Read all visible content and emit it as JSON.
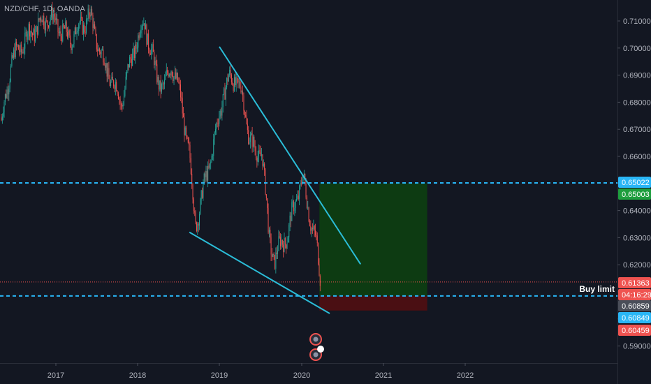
{
  "symbol": {
    "label": "NZD/CHF, 1D, OANDA"
  },
  "order": {
    "label": "Buy limit"
  },
  "colors": {
    "background": "#131722",
    "up": "#26a69a",
    "down": "#ef5350",
    "trendline": "#2bbdd8",
    "hline": "#29b6f6",
    "profit_zone": "#0d3b12",
    "loss_zone": "#4a0f13"
  },
  "chart_data": {
    "type": "candlestick",
    "title": "NZD/CHF, 1D, OANDA",
    "x_ticks": [
      "2017",
      "2018",
      "2019",
      "2020",
      "2021",
      "2022"
    ],
    "y_ticks": [
      "0.59000",
      "0.60000",
      "0.61000",
      "0.62000",
      "0.63000",
      "0.64000",
      "0.65000",
      "0.66000",
      "0.67000",
      "0.68000",
      "0.69000",
      "0.70000",
      "0.71000"
    ],
    "ylim": [
      0.5825,
      0.7145
    ],
    "price_series": [
      [
        "2016-04-01",
        0.655
      ],
      [
        "2016-06-15",
        0.695
      ],
      [
        "2016-09-01",
        0.705
      ],
      [
        "2016-12-01",
        0.712
      ],
      [
        "2017-03-01",
        0.703
      ],
      [
        "2017-06-01",
        0.712
      ],
      [
        "2017-08-01",
        0.695
      ],
      [
        "2017-10-20",
        0.68
      ],
      [
        "2017-12-15",
        0.7
      ],
      [
        "2018-02-01",
        0.71
      ],
      [
        "2018-03-25",
        0.69
      ],
      [
        "2018-05-01",
        0.685
      ],
      [
        "2018-06-01",
        0.695
      ],
      [
        "2018-07-15",
        0.68
      ],
      [
        "2018-08-20",
        0.66
      ],
      [
        "2018-09-15",
        0.635
      ],
      [
        "2018-10-10",
        0.643
      ],
      [
        "2018-11-10",
        0.655
      ],
      [
        "2018-12-20",
        0.67
      ],
      [
        "2019-01-20",
        0.684
      ],
      [
        "2019-02-15",
        0.688
      ],
      [
        "2019-03-15",
        0.689
      ],
      [
        "2019-04-10",
        0.683
      ],
      [
        "2019-05-10",
        0.67
      ],
      [
        "2019-06-10",
        0.66
      ],
      [
        "2019-07-10",
        0.663
      ],
      [
        "2019-08-10",
        0.63
      ],
      [
        "2019-09-05",
        0.622
      ],
      [
        "2019-10-05",
        0.628
      ],
      [
        "2019-11-05",
        0.632
      ],
      [
        "2019-12-10",
        0.645
      ],
      [
        "2020-01-05",
        0.652
      ],
      [
        "2020-01-25",
        0.643
      ],
      [
        "2020-02-15",
        0.635
      ],
      [
        "2020-03-05",
        0.628
      ],
      [
        "2020-03-25",
        0.6136
      ]
    ],
    "trendlines": [
      {
        "name": "upper",
        "points": [
          [
            "2019-01-01",
            0.7005
          ],
          [
            "2020-09-20",
            0.6202
          ]
        ]
      },
      {
        "name": "lower",
        "points": [
          [
            "2018-08-20",
            0.632
          ],
          [
            "2020-05-05",
            0.602
          ]
        ]
      }
    ],
    "horizontal_lines": [
      {
        "value": 0.65022,
        "style": "dashed"
      },
      {
        "value": 0.6085,
        "style": "dashed"
      }
    ],
    "position": {
      "type": "long",
      "start": "2020-03-20",
      "end": "2021-07-15",
      "entry": 0.6085,
      "target": 0.65003,
      "stop": 0.60459
    },
    "price_labels": [
      {
        "text": "0.65022",
        "role": "line"
      },
      {
        "text": "0.65003",
        "role": "target"
      },
      {
        "text": "0.61363",
        "role": "last-price"
      },
      {
        "text": "04:16:29",
        "role": "countdown"
      },
      {
        "text": "0.60859",
        "role": "crosshair"
      },
      {
        "text": "0.60849",
        "role": "line"
      },
      {
        "text": "0.60459",
        "role": "stop"
      }
    ],
    "last_price": 0.61363
  }
}
